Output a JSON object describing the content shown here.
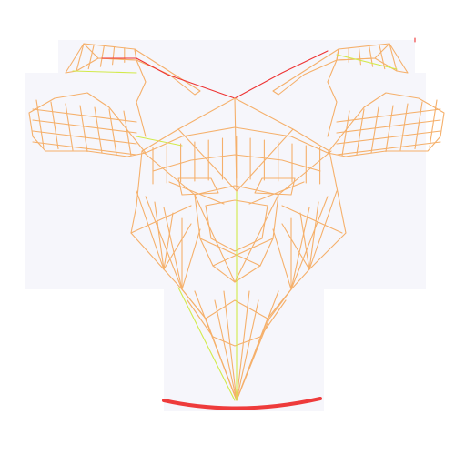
{
  "colors": {
    "background": "#ffffff",
    "backdrop": "#f6f6fb",
    "mesh": "#f5b06b",
    "mesh_highlight": "#d2ea4a",
    "edge_accent": "#ee3333",
    "arc": "#ee3b3b"
  },
  "subject": {
    "icon": "goat-head-wireframe-icon"
  }
}
